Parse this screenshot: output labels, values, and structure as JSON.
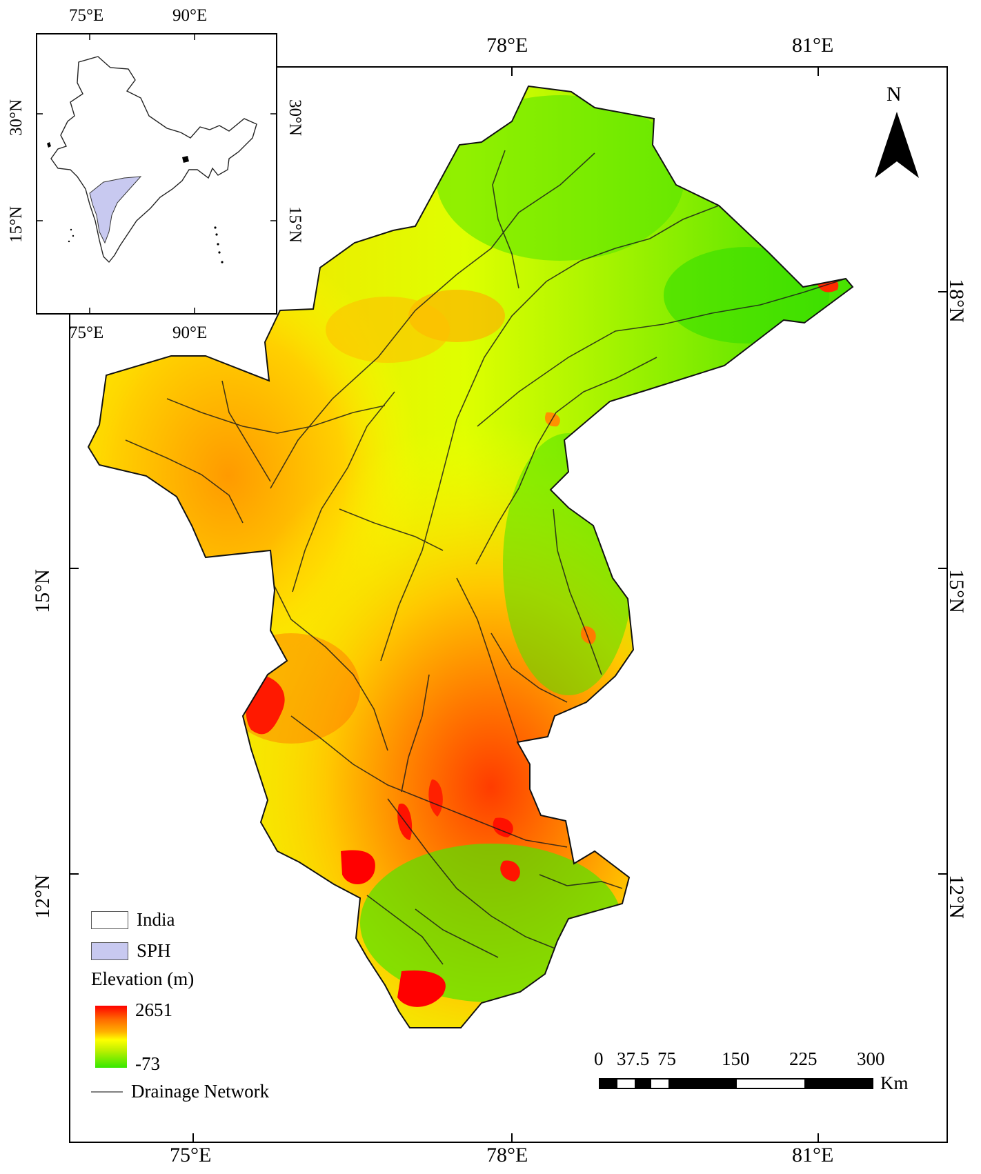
{
  "map": {
    "top_longitudes": [
      "78°E",
      "81°E"
    ],
    "bottom_longitudes": [
      "75°E",
      "78°E",
      "81°E"
    ],
    "left_latitudes": [
      "15°N",
      "12°N"
    ],
    "right_latitudes": [
      "18°N",
      "15°N",
      "12°N"
    ],
    "north_label": "N",
    "elevation_colors": [
      "#ff0000",
      "#ff8c00",
      "#ffff00",
      "#7cfc00",
      "#00c000"
    ]
  },
  "inset": {
    "top_longitudes": [
      "75°E",
      "90°E"
    ],
    "bottom_longitudes": [
      "75°E",
      "90°E"
    ],
    "left_latitudes": [
      "30°N",
      "15°N"
    ],
    "right_latitudes": [
      "30°N",
      "15°N"
    ]
  },
  "legend": {
    "india": "India",
    "sph": "SPH",
    "sph_color": "#c8c9f0",
    "elevation_title": "Elevation (m)",
    "high": "2651",
    "low": "-73",
    "drainage": "Drainage Network"
  },
  "scale": {
    "ticks": [
      "0",
      "37.5",
      "75",
      "150",
      "225",
      "300"
    ],
    "unit": "Km"
  }
}
